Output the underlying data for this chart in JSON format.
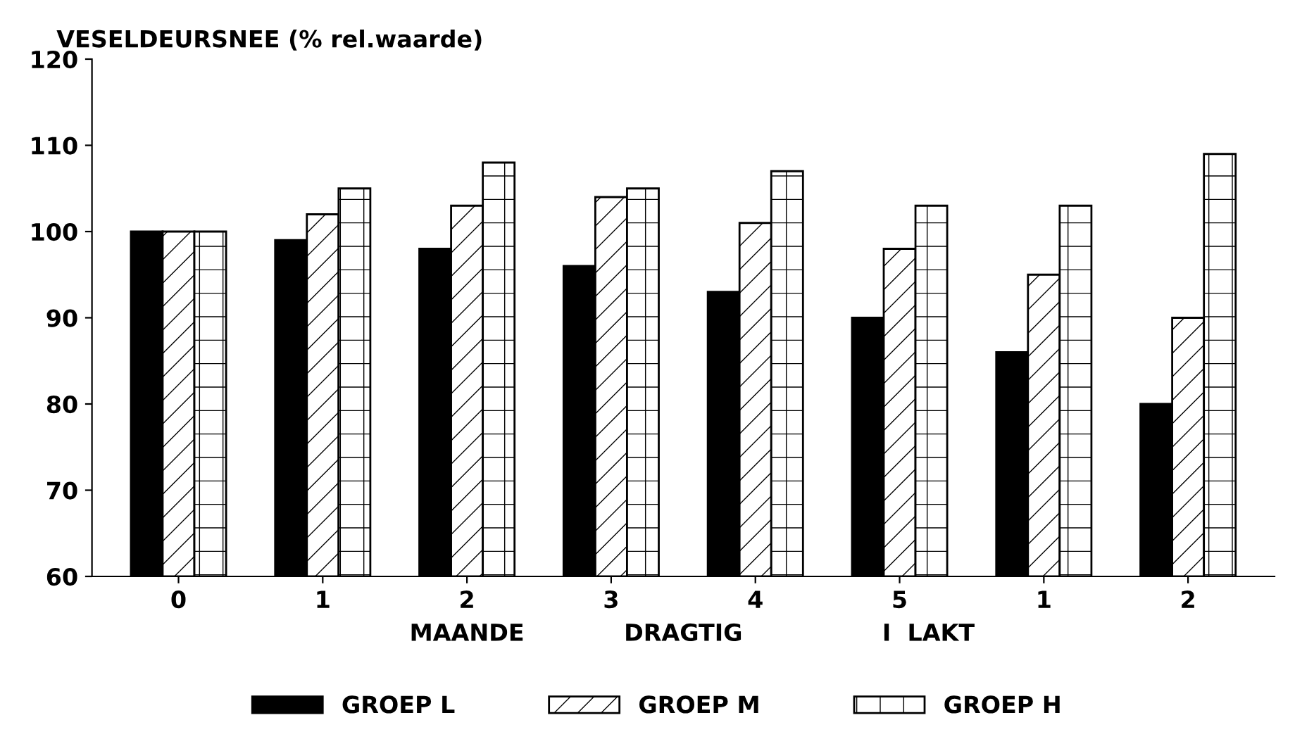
{
  "chart_data": {
    "type": "bar",
    "title": "VESELDEURSNEE (% rel.waarde)",
    "categories": [
      "0",
      "1",
      "2",
      "3",
      "4",
      "5",
      "1",
      "2"
    ],
    "series": [
      {
        "name": "GROEP L",
        "color": "#000000",
        "values": [
          100,
          99,
          98,
          96,
          93,
          90,
          86,
          80
        ]
      },
      {
        "name": "GROEP M",
        "color": "#000000",
        "values": [
          100,
          102,
          103,
          104,
          101,
          98,
          95,
          90
        ]
      },
      {
        "name": "GROEP H",
        "color": "#000000",
        "values": [
          100,
          105,
          108,
          105,
          107,
          103,
          103,
          109
        ]
      }
    ],
    "annotations": [
      "MAANDE",
      "DRAGTIG",
      "I  LAKT"
    ],
    "ylim": [
      60,
      120
    ],
    "yticks": [
      60,
      70,
      80,
      90,
      100,
      110,
      120
    ],
    "grid": false,
    "legend": "bottom"
  }
}
